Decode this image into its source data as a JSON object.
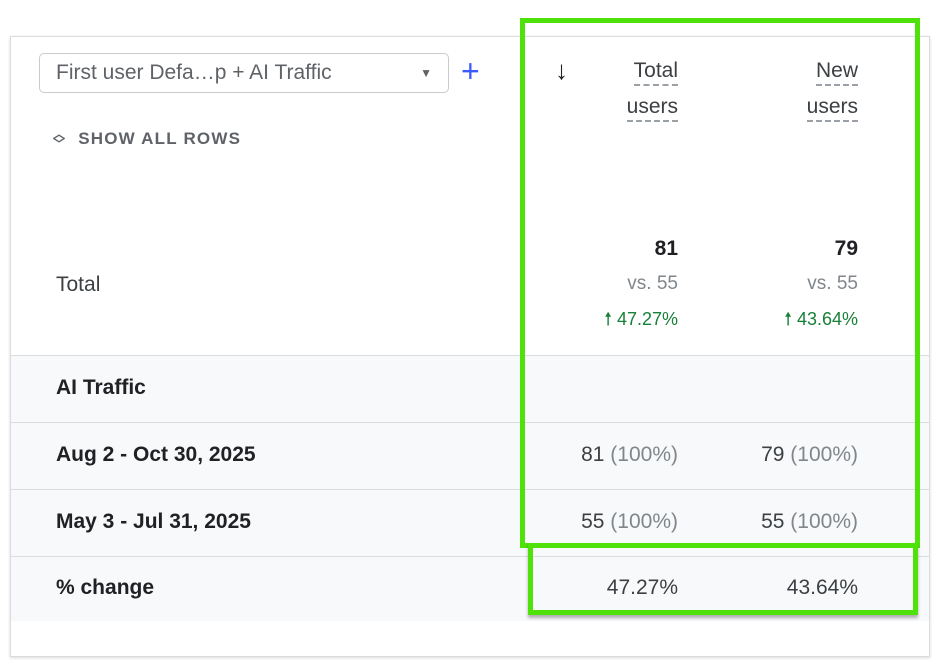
{
  "toolbar": {
    "dimension_select": "First user Defa…p + AI Traffic",
    "add_label": "+",
    "show_all_rows": "SHOW ALL ROWS"
  },
  "columns": [
    {
      "line1": "Total",
      "line2": "users"
    },
    {
      "line1": "New",
      "line2": "users"
    }
  ],
  "total": {
    "label": "Total",
    "values": [
      {
        "value": "81",
        "compare": "vs. 55",
        "change": "47.27%"
      },
      {
        "value": "79",
        "compare": "vs. 55",
        "change": "43.64%"
      }
    ]
  },
  "rows": [
    {
      "label": "AI Traffic",
      "cells": [
        {
          "v": "",
          "p": ""
        },
        {
          "v": "",
          "p": ""
        }
      ]
    },
    {
      "label": "Aug 2 - Oct 30, 2025",
      "cells": [
        {
          "v": "81",
          "p": "(100%)"
        },
        {
          "v": "79",
          "p": "(100%)"
        }
      ]
    },
    {
      "label": "May 3 - Jul 31, 2025",
      "cells": [
        {
          "v": "55",
          "p": "(100%)"
        },
        {
          "v": "55",
          "p": "(100%)"
        }
      ]
    },
    {
      "label": "% change",
      "cells": [
        {
          "v": "47.27%",
          "p": ""
        },
        {
          "v": "43.64%",
          "p": ""
        }
      ]
    }
  ],
  "colors": {
    "highlight": "#4ee20a",
    "positive": "#188038",
    "accent": "#3d5afe"
  },
  "icons": {
    "sort": "arrow-down-icon",
    "expand": "unfold-icon",
    "dropdown": "caret-down-icon",
    "trend": "arrow-up-icon"
  }
}
